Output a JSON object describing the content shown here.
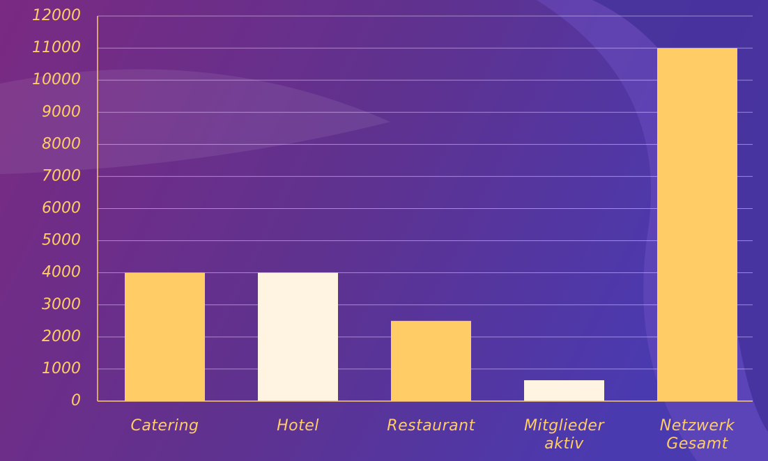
{
  "chart_data": {
    "type": "bar",
    "categories": [
      "Catering",
      "Hotel",
      "Restaurant",
      "Mitglieder aktiv",
      "Netzwerk Gesamt"
    ],
    "values": [
      4000,
      4000,
      2500,
      650,
      11000
    ],
    "colors": [
      "#ffcc66",
      "#fff4e1",
      "#ffcc66",
      "#fff4e1",
      "#ffcc66"
    ],
    "ylim": [
      0,
      12000
    ],
    "yticks": [
      0,
      1000,
      2000,
      3000,
      4000,
      5000,
      6000,
      7000,
      8000,
      9000,
      10000,
      11000,
      12000
    ],
    "grid": true
  }
}
